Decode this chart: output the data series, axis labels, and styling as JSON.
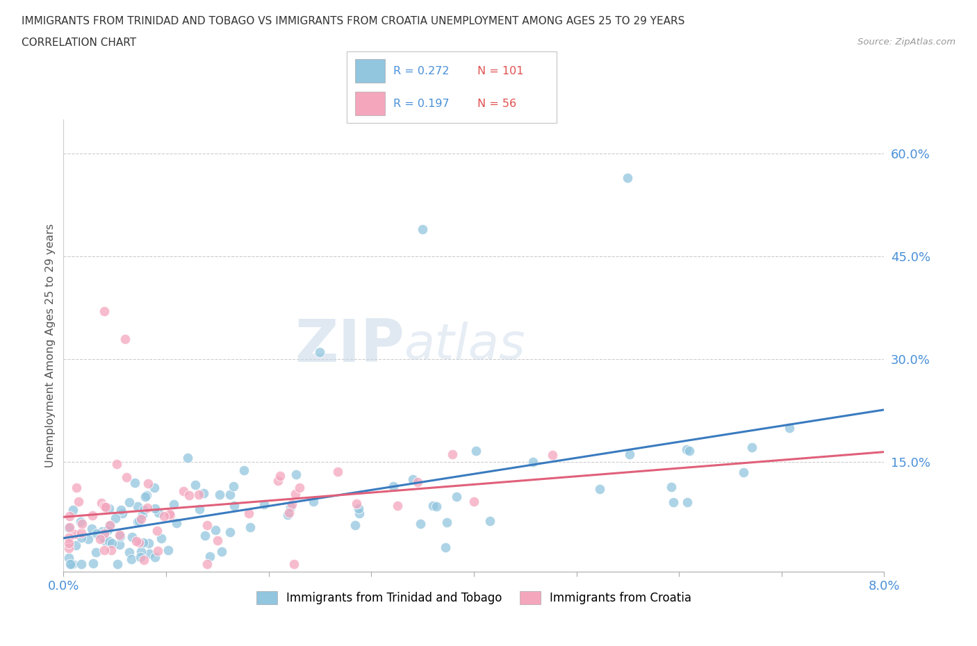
{
  "title_line1": "IMMIGRANTS FROM TRINIDAD AND TOBAGO VS IMMIGRANTS FROM CROATIA UNEMPLOYMENT AMONG AGES 25 TO 29 YEARS",
  "title_line2": "CORRELATION CHART",
  "source_text": "Source: ZipAtlas.com",
  "ylabel": "Unemployment Among Ages 25 to 29 years",
  "xlim": [
    0.0,
    0.08
  ],
  "ylim": [
    -0.01,
    0.65
  ],
  "ytick_positions": [
    0.0,
    0.15,
    0.3,
    0.45,
    0.6
  ],
  "ytick_labels": [
    "",
    "15.0%",
    "30.0%",
    "45.0%",
    "60.0%"
  ],
  "color_blue": "#92c5de",
  "color_pink": "#f4a6bd",
  "color_blue_line": "#3a7bbf",
  "color_pink_line": "#e0607a",
  "r_blue": 0.272,
  "n_blue": 101,
  "r_pink": 0.197,
  "n_pink": 56,
  "legend_label_blue": "Immigrants from Trinidad and Tobago",
  "legend_label_pink": "Immigrants from Croatia",
  "watermark_zip": "ZIP",
  "watermark_atlas": "atlas",
  "title_color": "#333333",
  "axis_color": "#4a90d9",
  "source_color": "#999999"
}
